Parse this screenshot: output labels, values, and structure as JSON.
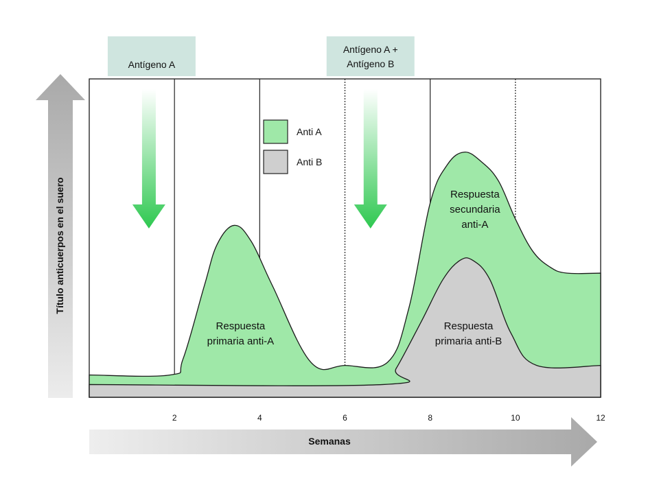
{
  "colors": {
    "anti_a": "#9fe8a8",
    "anti_b": "#cfcfcf",
    "event_box": "#cfe5df",
    "inject_arrow": "#2ec850",
    "axis_arrow": "#b8b8b8"
  },
  "chart_data": {
    "type": "area",
    "xlabel": "Semanas",
    "ylabel": "Título anticuerpos en el suero",
    "xlim": [
      0,
      12
    ],
    "ylim": [
      0,
      10
    ],
    "x_ticks": [
      "2",
      "4",
      "6",
      "8",
      "10",
      "12"
    ],
    "x_tick_values": [
      2,
      4,
      6,
      8,
      10,
      12
    ],
    "solid_gridlines": [
      2,
      4,
      8
    ],
    "dashed_gridlines": [
      6,
      10
    ],
    "series": [
      {
        "name": "Anti A",
        "color": "#9fe8a8",
        "x": [
          0,
          1.9,
          2.2,
          2.7,
          3.0,
          3.4,
          3.8,
          4.3,
          5.2,
          6.0,
          7.0,
          7.5,
          8.0,
          8.4,
          8.8,
          9.2,
          9.6,
          10.0,
          10.4,
          10.8,
          11.2,
          12
        ],
        "y": [
          0.7,
          0.7,
          1.2,
          3.5,
          4.8,
          5.4,
          4.9,
          3.5,
          1.1,
          1.0,
          1.1,
          2.8,
          6.1,
          7.3,
          7.7,
          7.4,
          6.8,
          5.6,
          4.6,
          4.1,
          3.9,
          3.9
        ]
      },
      {
        "name": "Anti B",
        "color": "#cfcfcf",
        "x": [
          0,
          6.9,
          7.2,
          7.8,
          8.3,
          8.7,
          9.0,
          9.4,
          9.9,
          10.5,
          12
        ],
        "y": [
          0.4,
          0.4,
          0.9,
          2.4,
          3.7,
          4.3,
          4.3,
          3.7,
          2.0,
          1.0,
          1.0
        ]
      }
    ],
    "legend": {
      "placement": "top-center",
      "entries": [
        {
          "label": "Anti A",
          "color": "#9fe8a8"
        },
        {
          "label": "Anti B",
          "color": "#cfcfcf"
        }
      ]
    },
    "events": [
      {
        "x": 1.4,
        "label_lines": [
          "Antígeno A"
        ]
      },
      {
        "x": 6.6,
        "label_lines": [
          "Antígeno A +",
          "Antígeno B"
        ]
      }
    ],
    "annotations": [
      {
        "x": 3.55,
        "y": 1.9,
        "lines": [
          "Respuesta",
          "primaria anti-A"
        ]
      },
      {
        "x": 8.9,
        "y": 1.9,
        "lines": [
          "Respuesta",
          "primaria anti-B"
        ]
      },
      {
        "x": 9.05,
        "y": 5.8,
        "lines": [
          "Respuesta",
          "secundaria",
          "anti-A"
        ]
      }
    ]
  }
}
